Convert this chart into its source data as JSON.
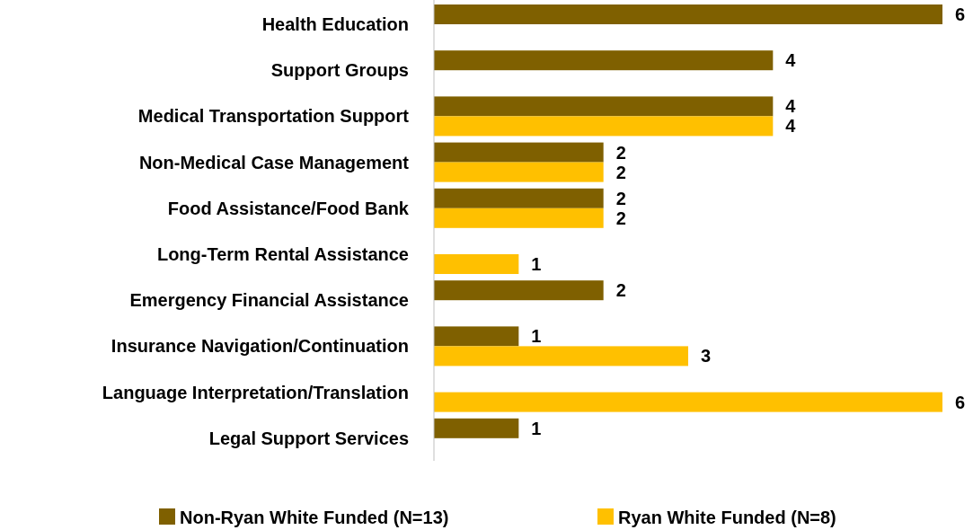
{
  "chart_data": {
    "type": "bar",
    "orientation": "horizontal",
    "categories": [
      "Health Education",
      "Support Groups",
      "Medical Transportation Support",
      "Non-Medical Case Management",
      "Food Assistance/Food Bank",
      "Long-Term Rental Assistance",
      "Emergency Financial Assistance",
      "Insurance Navigation/Continuation",
      "Language Interpretation/Translation",
      "Legal Support Services"
    ],
    "series": [
      {
        "name": "Non-Ryan White Funded (N=13)",
        "color": "#7f6000",
        "values": [
          6,
          4,
          4,
          2,
          2,
          null,
          2,
          1,
          null,
          1
        ]
      },
      {
        "name": "Ryan White Funded (N=8)",
        "color": "#ffc000",
        "values": [
          null,
          null,
          4,
          2,
          2,
          1,
          null,
          3,
          6,
          null
        ]
      }
    ],
    "data_labels": true,
    "legend": "bottom",
    "grid": false
  }
}
